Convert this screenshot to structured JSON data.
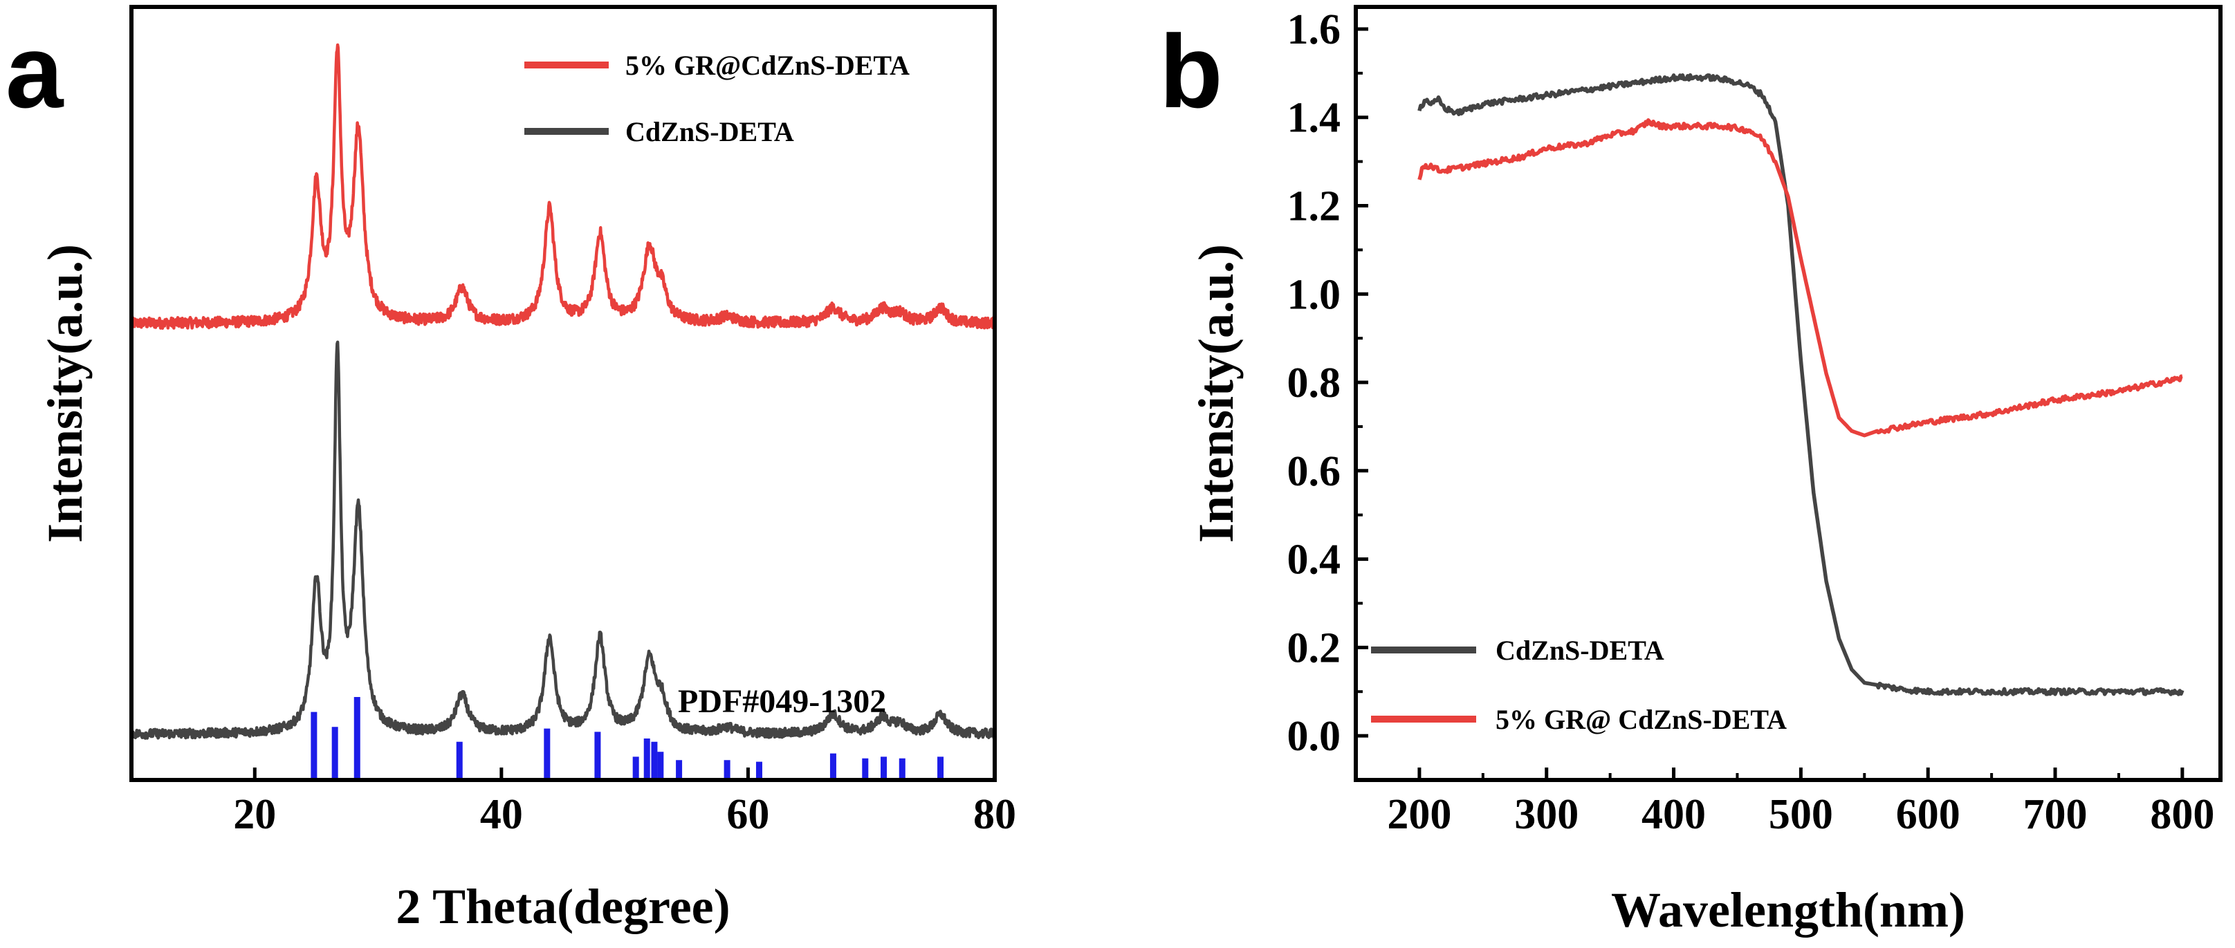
{
  "colors": {
    "red": "#e8403c",
    "gray": "#444444",
    "blue": "#1c1ce8",
    "axis": "#000000"
  },
  "panel_a": {
    "letter": "a",
    "pdf_label": "PDF#049-1302"
  },
  "panel_b": {
    "letter": "b"
  },
  "chart_data": [
    {
      "id": "a",
      "type": "line",
      "title": "",
      "xlabel": "2 Theta(degree)",
      "ylabel": "Intensity(a.u.)",
      "xlim": [
        10,
        80
      ],
      "xticks": [
        20,
        40,
        60,
        80
      ],
      "xtick_labels": [
        "20",
        "40",
        "60",
        "80"
      ],
      "y_ticks_shown": false,
      "legend": {
        "position": "top-right",
        "entries": [
          "5% GR@CdZnS-DETA",
          "CdZnS-DETA"
        ]
      },
      "series": [
        {
          "name": "5% GR@CdZnS-DETA",
          "color": "#e8403c",
          "baseline": 6.0,
          "noise": 0.07,
          "peaks": [
            {
              "x": 25.0,
              "h": 1.75,
              "w": 0.45
            },
            {
              "x": 26.7,
              "h": 3.35,
              "w": 0.35
            },
            {
              "x": 28.4,
              "h": 2.45,
              "w": 0.5
            },
            {
              "x": 36.8,
              "h": 0.45,
              "w": 0.6
            },
            {
              "x": 43.9,
              "h": 1.5,
              "w": 0.5
            },
            {
              "x": 48.0,
              "h": 1.15,
              "w": 0.5
            },
            {
              "x": 52.0,
              "h": 0.95,
              "w": 0.6
            },
            {
              "x": 53.0,
              "h": 0.35,
              "w": 0.5
            },
            {
              "x": 58.3,
              "h": 0.08,
              "w": 0.8
            },
            {
              "x": 66.9,
              "h": 0.2,
              "w": 0.7
            },
            {
              "x": 70.9,
              "h": 0.18,
              "w": 0.7
            },
            {
              "x": 72.3,
              "h": 0.12,
              "w": 0.6
            },
            {
              "x": 75.6,
              "h": 0.2,
              "w": 0.6
            }
          ]
        },
        {
          "name": "CdZnS-DETA",
          "color": "#444444",
          "baseline": 0.6,
          "noise": 0.06,
          "peaks": [
            {
              "x": 25.0,
              "h": 1.9,
              "w": 0.45
            },
            {
              "x": 26.7,
              "h": 4.85,
              "w": 0.3
            },
            {
              "x": 28.4,
              "h": 2.85,
              "w": 0.5
            },
            {
              "x": 36.8,
              "h": 0.5,
              "w": 0.6
            },
            {
              "x": 43.9,
              "h": 1.25,
              "w": 0.5
            },
            {
              "x": 48.0,
              "h": 1.25,
              "w": 0.5
            },
            {
              "x": 52.0,
              "h": 0.95,
              "w": 0.6
            },
            {
              "x": 53.0,
              "h": 0.35,
              "w": 0.5
            },
            {
              "x": 58.3,
              "h": 0.08,
              "w": 0.8
            },
            {
              "x": 66.9,
              "h": 0.25,
              "w": 0.7
            },
            {
              "x": 70.9,
              "h": 0.2,
              "w": 0.7
            },
            {
              "x": 72.3,
              "h": 0.12,
              "w": 0.6
            },
            {
              "x": 75.6,
              "h": 0.25,
              "w": 0.6
            }
          ]
        }
      ],
      "reference": {
        "name": "PDF#049-1302",
        "color": "#1c1ce8",
        "lines": [
          {
            "x": 24.8,
            "h": 0.82
          },
          {
            "x": 26.5,
            "h": 0.64
          },
          {
            "x": 28.3,
            "h": 1.0
          },
          {
            "x": 36.6,
            "h": 0.46
          },
          {
            "x": 43.7,
            "h": 0.62
          },
          {
            "x": 47.8,
            "h": 0.58
          },
          {
            "x": 50.9,
            "h": 0.28
          },
          {
            "x": 51.8,
            "h": 0.5
          },
          {
            "x": 52.4,
            "h": 0.46
          },
          {
            "x": 52.9,
            "h": 0.34
          },
          {
            "x": 54.4,
            "h": 0.24
          },
          {
            "x": 58.3,
            "h": 0.24
          },
          {
            "x": 60.9,
            "h": 0.22
          },
          {
            "x": 66.9,
            "h": 0.32
          },
          {
            "x": 69.5,
            "h": 0.26
          },
          {
            "x": 71.0,
            "h": 0.28
          },
          {
            "x": 72.5,
            "h": 0.26
          },
          {
            "x": 75.6,
            "h": 0.28
          }
        ]
      }
    },
    {
      "id": "b",
      "type": "line",
      "title": "",
      "xlabel": "Wavelength(nm)",
      "ylabel": "Intensity(a.u.)",
      "xlim": [
        150,
        830
      ],
      "ylim": [
        -0.1,
        1.65
      ],
      "xticks": [
        200,
        300,
        400,
        500,
        600,
        700,
        800
      ],
      "xtick_labels": [
        "200",
        "300",
        "400",
        "500",
        "600",
        "700",
        "800"
      ],
      "yticks": [
        0.0,
        0.2,
        0.4,
        0.6,
        0.8,
        1.0,
        1.2,
        1.4,
        1.6
      ],
      "ytick_labels": [
        "0.0",
        "0.2",
        "0.4",
        "0.6",
        "0.8",
        "1.0",
        "1.2",
        "1.4",
        "1.6"
      ],
      "legend": {
        "position": "bottom-left",
        "entries": [
          "CdZnS-DETA",
          "5% GR@ CdZnS-DETA"
        ]
      },
      "series": [
        {
          "name": "CdZnS-DETA",
          "color": "#444444",
          "noise": 0.006,
          "points": [
            [
              200,
              1.42
            ],
            [
              205,
              1.44
            ],
            [
              210,
              1.43
            ],
            [
              215,
              1.44
            ],
            [
              220,
              1.42
            ],
            [
              230,
              1.41
            ],
            [
              250,
              1.43
            ],
            [
              300,
              1.45
            ],
            [
              350,
              1.47
            ],
            [
              400,
              1.49
            ],
            [
              430,
              1.49
            ],
            [
              450,
              1.48
            ],
            [
              460,
              1.47
            ],
            [
              470,
              1.45
            ],
            [
              480,
              1.39
            ],
            [
              490,
              1.2
            ],
            [
              500,
              0.85
            ],
            [
              510,
              0.55
            ],
            [
              520,
              0.35
            ],
            [
              530,
              0.22
            ],
            [
              540,
              0.15
            ],
            [
              550,
              0.12
            ],
            [
              560,
              0.115
            ],
            [
              580,
              0.105
            ],
            [
              600,
              0.1
            ],
            [
              650,
              0.1
            ],
            [
              700,
              0.1
            ],
            [
              750,
              0.1
            ],
            [
              800,
              0.1
            ]
          ]
        },
        {
          "name": "5% GR@ CdZnS-DETA",
          "color": "#e8403c",
          "noise": 0.006,
          "points": [
            [
              200,
              1.26
            ],
            [
              203,
              1.29
            ],
            [
              210,
              1.29
            ],
            [
              215,
              1.28
            ],
            [
              220,
              1.28
            ],
            [
              240,
              1.29
            ],
            [
              280,
              1.31
            ],
            [
              300,
              1.33
            ],
            [
              330,
              1.34
            ],
            [
              350,
              1.36
            ],
            [
              370,
              1.37
            ],
            [
              380,
              1.39
            ],
            [
              390,
              1.38
            ],
            [
              400,
              1.38
            ],
            [
              420,
              1.38
            ],
            [
              440,
              1.38
            ],
            [
              460,
              1.37
            ],
            [
              470,
              1.35
            ],
            [
              480,
              1.3
            ],
            [
              490,
              1.22
            ],
            [
              500,
              1.08
            ],
            [
              510,
              0.95
            ],
            [
              520,
              0.82
            ],
            [
              530,
              0.72
            ],
            [
              540,
              0.69
            ],
            [
              550,
              0.68
            ],
            [
              560,
              0.69
            ],
            [
              600,
              0.71
            ],
            [
              650,
              0.73
            ],
            [
              700,
              0.76
            ],
            [
              750,
              0.78
            ],
            [
              800,
              0.81
            ]
          ]
        }
      ]
    }
  ]
}
